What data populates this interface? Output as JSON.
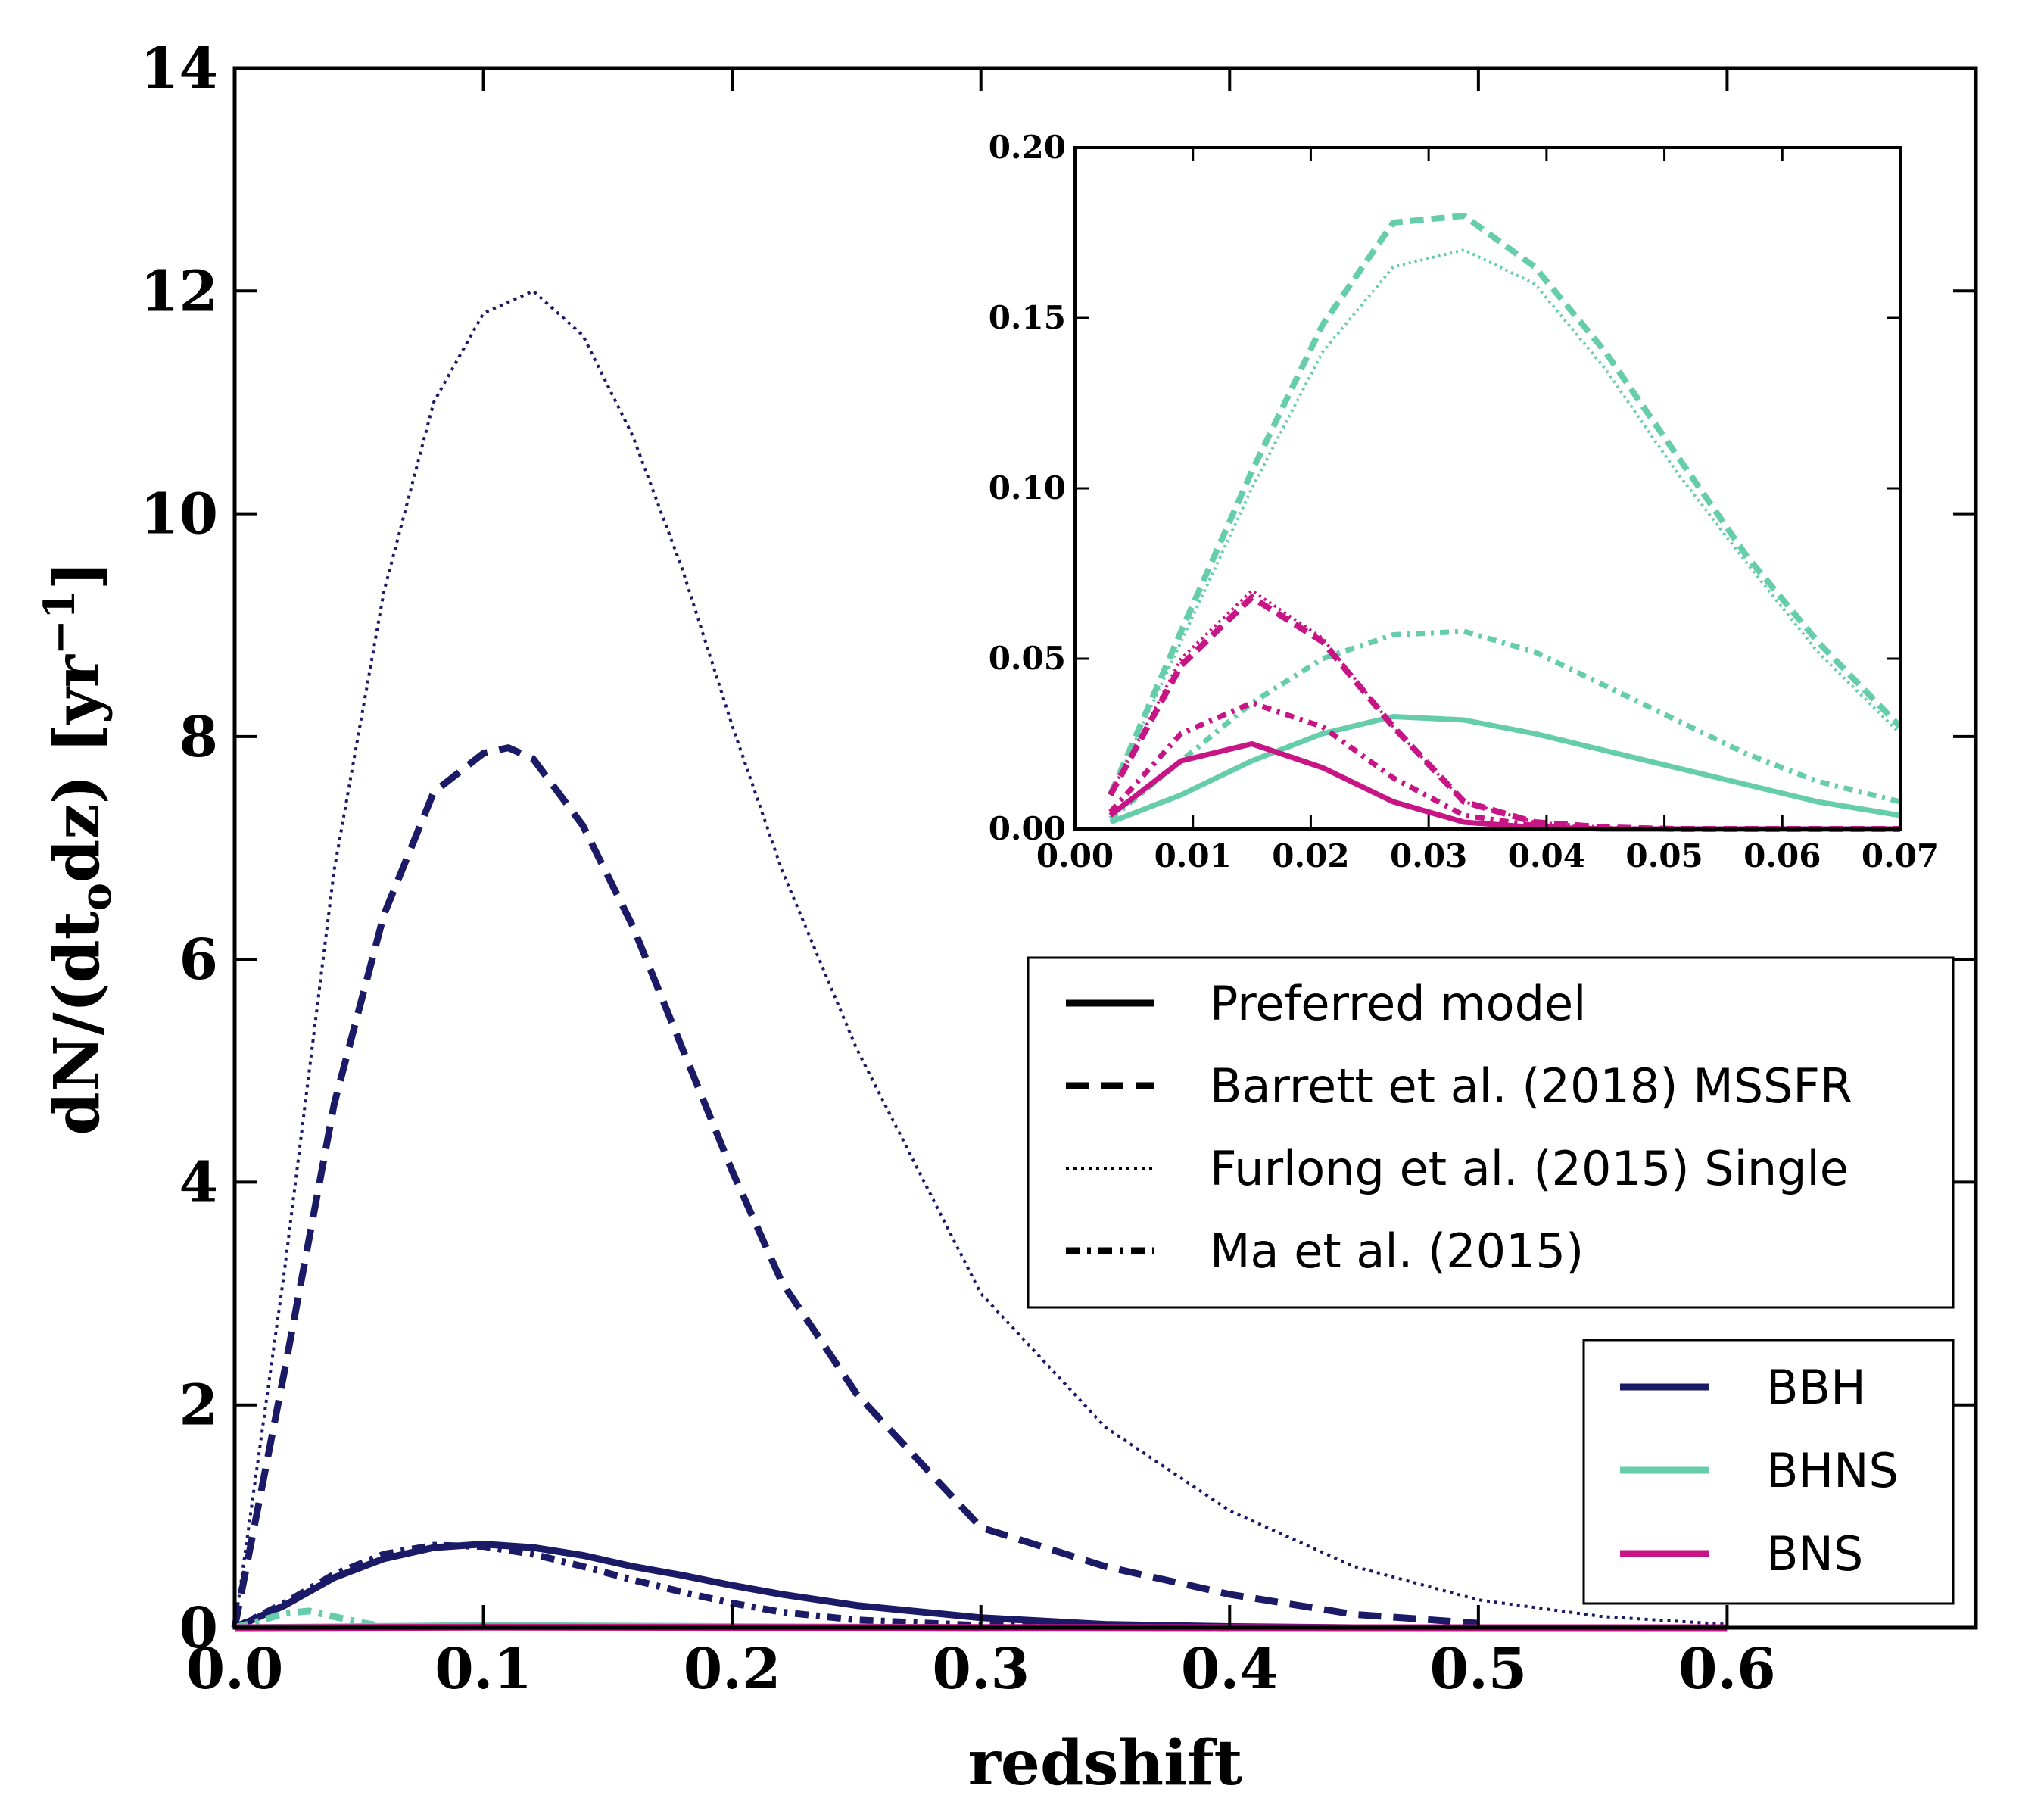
{
  "colors": {
    "BBH": "#1a1a66",
    "BHNS": "#66cdaa",
    "BNS": "#c71585"
  },
  "chart_data": [
    {
      "id": "main",
      "type": "line",
      "xlabel": "redshift",
      "ylabel": "dN/(dt_o dz) [yr^-1]",
      "ylabel_parts": {
        "a": "dN/(dt",
        "sub": "o",
        "b": "dz) [yr",
        "sup": "−1",
        "c": "]"
      },
      "xlim": [
        0.0,
        0.7
      ],
      "ylim": [
        0,
        14
      ],
      "xticks": [
        0.0,
        0.1,
        0.2,
        0.3,
        0.4,
        0.5,
        0.6
      ],
      "xtick_labels": [
        "0.0",
        "0.1",
        "0.2",
        "0.3",
        "0.4",
        "0.5",
        "0.6"
      ],
      "yticks": [
        0,
        2,
        4,
        6,
        8,
        10,
        12,
        14
      ],
      "ytick_labels": [
        "0",
        "2",
        "4",
        "6",
        "8",
        "10",
        "12",
        "14"
      ],
      "series": [
        {
          "type": "BBH",
          "model": "Furlong",
          "x": [
            0,
            0.02,
            0.04,
            0.06,
            0.08,
            0.1,
            0.12,
            0.14,
            0.16,
            0.18,
            0.2,
            0.22,
            0.25,
            0.3,
            0.35,
            0.4,
            0.45,
            0.5,
            0.55,
            0.6
          ],
          "y": [
            0,
            3.2,
            6.8,
            9.3,
            11.0,
            11.8,
            12.0,
            11.6,
            10.7,
            9.5,
            8.1,
            6.8,
            5.2,
            3.0,
            1.8,
            1.05,
            0.55,
            0.25,
            0.1,
            0.03
          ]
        },
        {
          "type": "BBH",
          "model": "Barrett",
          "x": [
            0,
            0.02,
            0.04,
            0.06,
            0.08,
            0.1,
            0.11,
            0.12,
            0.14,
            0.16,
            0.18,
            0.2,
            0.22,
            0.25,
            0.3,
            0.35,
            0.4,
            0.45,
            0.5
          ],
          "y": [
            0,
            2.3,
            4.7,
            6.4,
            7.5,
            7.85,
            7.9,
            7.8,
            7.2,
            6.3,
            5.2,
            4.1,
            3.1,
            2.1,
            0.9,
            0.55,
            0.3,
            0.12,
            0.04
          ]
        },
        {
          "type": "BBH",
          "model": "Preferred",
          "x": [
            0,
            0.02,
            0.04,
            0.06,
            0.08,
            0.1,
            0.12,
            0.14,
            0.16,
            0.18,
            0.2,
            0.22,
            0.25,
            0.3,
            0.35,
            0.4,
            0.45
          ],
          "y": [
            0,
            0.2,
            0.45,
            0.62,
            0.72,
            0.75,
            0.72,
            0.65,
            0.55,
            0.47,
            0.38,
            0.3,
            0.2,
            0.09,
            0.03,
            0.01,
            0.0
          ]
        },
        {
          "type": "BBH",
          "model": "Ma",
          "x": [
            0,
            0.02,
            0.04,
            0.06,
            0.08,
            0.1,
            0.12,
            0.14,
            0.16,
            0.18,
            0.2,
            0.22,
            0.25,
            0.3,
            0.35,
            0.4
          ],
          "y": [
            0,
            0.22,
            0.48,
            0.66,
            0.74,
            0.73,
            0.66,
            0.55,
            0.43,
            0.32,
            0.22,
            0.14,
            0.07,
            0.02,
            0.005,
            0.0
          ]
        },
        {
          "type": "BHNS",
          "model": "Ma",
          "x": [
            0,
            0.01,
            0.02,
            0.03,
            0.04,
            0.05,
            0.06
          ],
          "y": [
            0,
            0.06,
            0.13,
            0.15,
            0.1,
            0.05,
            0.01
          ]
        },
        {
          "type": "BHNS",
          "model": "Preferred",
          "x": [
            0,
            0.1,
            0.2,
            0.3
          ],
          "y": [
            0,
            0.02,
            0.01,
            0.0
          ]
        },
        {
          "type": "BNS",
          "model": "Preferred",
          "x": [
            0,
            0.1,
            0.2,
            0.3,
            0.4,
            0.5,
            0.6
          ],
          "y": [
            0,
            0.005,
            0.003,
            0.002,
            0.001,
            0.0,
            0.0
          ]
        }
      ]
    },
    {
      "id": "inset",
      "type": "line",
      "xlim": [
        0.0,
        0.07
      ],
      "ylim": [
        0.0,
        0.2
      ],
      "xticks": [
        0.0,
        0.01,
        0.02,
        0.03,
        0.04,
        0.05,
        0.06,
        0.07
      ],
      "xtick_labels": [
        "0.00",
        "0.01",
        "0.02",
        "0.03",
        "0.04",
        "0.05",
        "0.06",
        "0.07"
      ],
      "yticks": [
        0.0,
        0.05,
        0.1,
        0.15,
        0.2
      ],
      "ytick_labels": [
        "0.00",
        "0.05",
        "0.10",
        "0.15",
        "0.20"
      ],
      "series": [
        {
          "type": "BHNS",
          "model": "Barrett",
          "x": [
            0.003,
            0.009,
            0.015,
            0.021,
            0.027,
            0.033,
            0.039,
            0.045,
            0.051,
            0.057,
            0.063,
            0.07
          ],
          "y": [
            0.01,
            0.058,
            0.105,
            0.148,
            0.178,
            0.18,
            0.165,
            0.14,
            0.11,
            0.08,
            0.055,
            0.03
          ]
        },
        {
          "type": "BHNS",
          "model": "Furlong",
          "x": [
            0.003,
            0.009,
            0.015,
            0.021,
            0.027,
            0.033,
            0.039,
            0.045,
            0.051,
            0.057,
            0.063,
            0.07
          ],
          "y": [
            0.01,
            0.055,
            0.1,
            0.14,
            0.165,
            0.17,
            0.16,
            0.135,
            0.105,
            0.078,
            0.052,
            0.028
          ]
        },
        {
          "type": "BHNS",
          "model": "Ma",
          "x": [
            0.003,
            0.009,
            0.015,
            0.021,
            0.027,
            0.033,
            0.039,
            0.045,
            0.051,
            0.057,
            0.063,
            0.07
          ],
          "y": [
            0.003,
            0.02,
            0.037,
            0.05,
            0.057,
            0.058,
            0.052,
            0.042,
            0.032,
            0.022,
            0.014,
            0.008
          ]
        },
        {
          "type": "BHNS",
          "model": "Preferred",
          "x": [
            0.003,
            0.009,
            0.015,
            0.021,
            0.027,
            0.033,
            0.039,
            0.045,
            0.051,
            0.057,
            0.063,
            0.07
          ],
          "y": [
            0.002,
            0.01,
            0.02,
            0.028,
            0.033,
            0.032,
            0.028,
            0.023,
            0.018,
            0.013,
            0.008,
            0.004
          ]
        },
        {
          "type": "BNS",
          "model": "Barrett",
          "x": [
            0.003,
            0.009,
            0.015,
            0.021,
            0.027,
            0.033,
            0.039,
            0.045,
            0.051,
            0.057,
            0.063,
            0.07
          ],
          "y": [
            0.01,
            0.048,
            0.068,
            0.055,
            0.03,
            0.008,
            0.002,
            0.0005,
            0.0,
            0.0,
            0.0,
            0.0
          ]
        },
        {
          "type": "BNS",
          "model": "Furlong",
          "x": [
            0.003,
            0.009,
            0.015,
            0.021,
            0.027,
            0.033,
            0.039,
            0.045,
            0.051,
            0.057,
            0.063,
            0.07
          ],
          "y": [
            0.01,
            0.05,
            0.07,
            0.056,
            0.03,
            0.008,
            0.002,
            0.0005,
            0.0,
            0.0,
            0.0,
            0.0
          ]
        },
        {
          "type": "BNS",
          "model": "Ma",
          "x": [
            0.003,
            0.009,
            0.015,
            0.021,
            0.027,
            0.033,
            0.039,
            0.045,
            0.051,
            0.057,
            0.063,
            0.07
          ],
          "y": [
            0.005,
            0.028,
            0.037,
            0.03,
            0.015,
            0.004,
            0.001,
            0.0,
            0.0,
            0.0,
            0.0,
            0.0
          ]
        },
        {
          "type": "BNS",
          "model": "Preferred",
          "x": [
            0.003,
            0.009,
            0.015,
            0.021,
            0.027,
            0.033,
            0.039,
            0.045,
            0.051,
            0.057,
            0.063,
            0.07
          ],
          "y": [
            0.004,
            0.02,
            0.025,
            0.018,
            0.008,
            0.002,
            0.0005,
            0.0,
            0.0,
            0.0,
            0.0,
            0.0
          ]
        }
      ]
    }
  ],
  "legend_models": [
    {
      "model": "Preferred",
      "label": "Preferred model"
    },
    {
      "model": "Barrett",
      "label": "Barrett et al. (2018) MSSFR"
    },
    {
      "model": "Furlong",
      "label": "Furlong et al. (2015) Single"
    },
    {
      "model": "Ma",
      "label": "Ma et al. (2015)"
    }
  ],
  "legend_types": [
    {
      "type": "BBH",
      "label": "BBH"
    },
    {
      "type": "BHNS",
      "label": "BHNS"
    },
    {
      "type": "BNS",
      "label": "BNS"
    }
  ]
}
